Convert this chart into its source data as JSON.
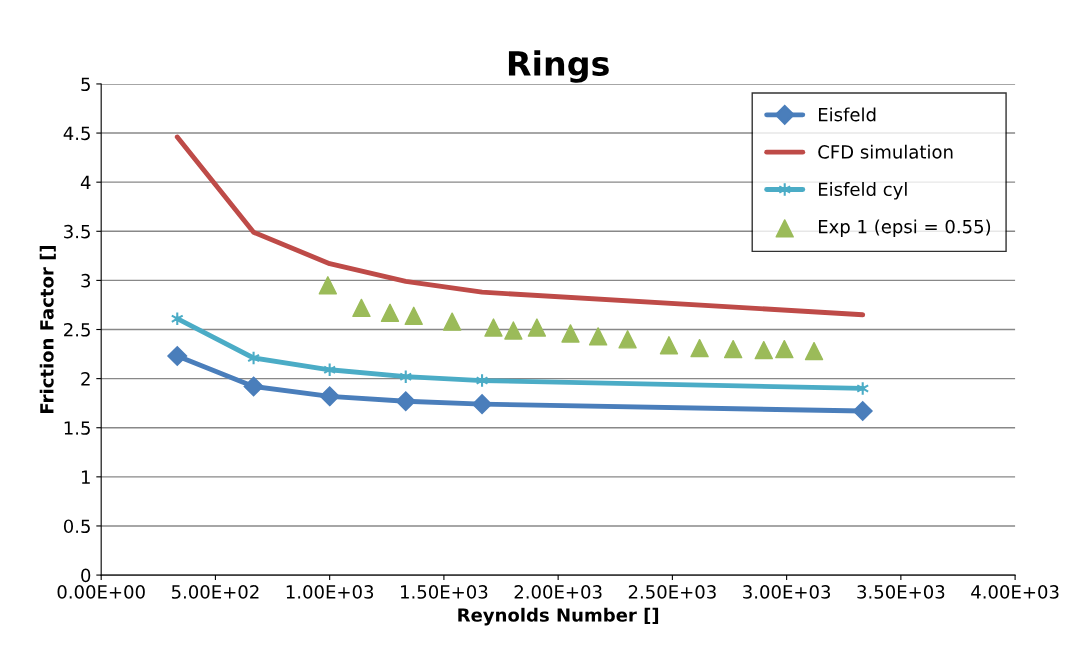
{
  "chart_data": {
    "type": "line",
    "title": "Rings",
    "xlabel": "Reynolds Number []",
    "ylabel": "Friction Factor []",
    "xlim": [
      0,
      4000
    ],
    "ylim": [
      0,
      5
    ],
    "xticks": [
      {
        "value": 0,
        "label": "0.00E+00"
      },
      {
        "value": 500,
        "label": "5.00E+02"
      },
      {
        "value": 1000,
        "label": "1.00E+03"
      },
      {
        "value": 1500,
        "label": "1.50E+03"
      },
      {
        "value": 2000,
        "label": "2.00E+03"
      },
      {
        "value": 2500,
        "label": "2.50E+03"
      },
      {
        "value": 3000,
        "label": "3.00E+03"
      },
      {
        "value": 3500,
        "label": "3.50E+03"
      },
      {
        "value": 4000,
        "label": "4.00E+03"
      }
    ],
    "yticks": [
      0,
      0.5,
      1,
      1.5,
      2,
      2.5,
      3,
      3.5,
      4,
      4.5,
      5
    ],
    "grid": "y",
    "legend": "top right",
    "series": [
      {
        "name": "Eisfeld",
        "color": "#4a7ebb",
        "marker": "diamond",
        "x": [
          333,
          667,
          1000,
          1333,
          1667,
          3333
        ],
        "values": [
          2.23,
          1.92,
          1.82,
          1.77,
          1.74,
          1.67
        ]
      },
      {
        "name": "CFD simulation",
        "color": "#be4b48",
        "marker": "none",
        "x": [
          333,
          667,
          1000,
          1333,
          1667,
          3333
        ],
        "values": [
          4.46,
          3.49,
          3.17,
          2.99,
          2.88,
          2.65
        ]
      },
      {
        "name": "Eisfeld cyl",
        "color": "#4bacc6",
        "marker": "cross",
        "x": [
          333,
          667,
          1000,
          1333,
          1667,
          3333
        ],
        "values": [
          2.61,
          2.21,
          2.09,
          2.02,
          1.98,
          1.9
        ]
      },
      {
        "name": "Exp 1 (epsi = 0.55)",
        "type": "scatter",
        "color": "#9bbb59",
        "marker": "triangle",
        "x": [
          992,
          1139,
          1264,
          1368,
          1536,
          1717,
          1804,
          1907,
          2054,
          2175,
          2304,
          2485,
          2619,
          2766,
          2900,
          2990,
          3120
        ],
        "values": [
          2.95,
          2.72,
          2.67,
          2.64,
          2.58,
          2.52,
          2.49,
          2.52,
          2.46,
          2.43,
          2.4,
          2.34,
          2.31,
          2.3,
          2.29,
          2.3,
          2.28
        ]
      }
    ]
  }
}
